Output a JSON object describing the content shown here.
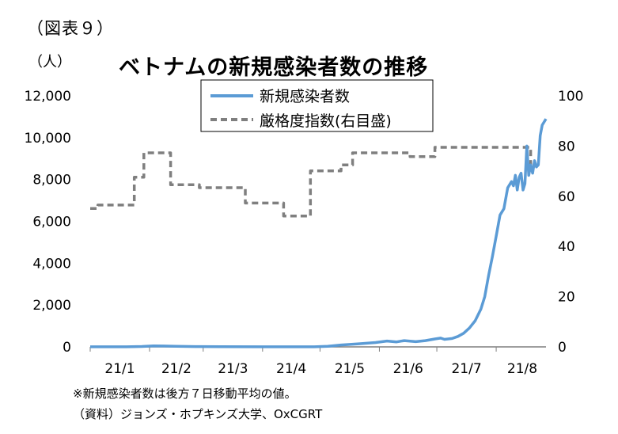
{
  "figure_label": "（図表９）",
  "unit_label": "（人）",
  "notes": {
    "note1": "※新規感染者数は後方７日移動平均の値。",
    "source": "（資料）ジョンズ・ホプキンズ大学、OxCGRT"
  },
  "colors": {
    "cases": "#5B9BD5",
    "stringency": "#7F7F7F",
    "axis": "#7F7F7F"
  },
  "chart_data": {
    "type": "line",
    "title": "ベトナムの新規感染者数の推移",
    "x_tick_labels": [
      "21/1",
      "21/2",
      "21/3",
      "21/4",
      "21/5",
      "21/6",
      "21/7",
      "21/8"
    ],
    "x_tick_dates": [
      "2021-01-01",
      "2021-02-01",
      "2021-03-01",
      "2021-04-01",
      "2021-05-01",
      "2021-06-01",
      "2021-07-01",
      "2021-08-01"
    ],
    "x_range": [
      "2021-01-01",
      "2021-08-27"
    ],
    "y_left": {
      "min": 0,
      "max": 12000,
      "ticks": [
        0,
        2000,
        4000,
        6000,
        8000,
        10000,
        12000
      ],
      "tick_labels": [
        "0",
        "2,000",
        "4,000",
        "6,000",
        "8,000",
        "10,000",
        "12,000"
      ]
    },
    "y_right": {
      "min": 0,
      "max": 100,
      "ticks": [
        0,
        20,
        40,
        60,
        80,
        100
      ],
      "tick_labels": [
        "0",
        "20",
        "40",
        "60",
        "80",
        "100"
      ]
    },
    "legend_position": "top-center, boxed",
    "series": [
      {
        "name": "新規感染者数",
        "axis": "left",
        "style": "solid",
        "points": [
          [
            "2021-01-01",
            2
          ],
          [
            "2021-01-20",
            5
          ],
          [
            "2021-01-28",
            20
          ],
          [
            "2021-02-03",
            50
          ],
          [
            "2021-02-08",
            40
          ],
          [
            "2021-02-15",
            25
          ],
          [
            "2021-02-25",
            15
          ],
          [
            "2021-03-10",
            8
          ],
          [
            "2021-04-01",
            5
          ],
          [
            "2021-04-28",
            5
          ],
          [
            "2021-05-05",
            30
          ],
          [
            "2021-05-12",
            90
          ],
          [
            "2021-05-22",
            150
          ],
          [
            "2021-05-30",
            210
          ],
          [
            "2021-06-05",
            280
          ],
          [
            "2021-06-10",
            240
          ],
          [
            "2021-06-14",
            300
          ],
          [
            "2021-06-20",
            250
          ],
          [
            "2021-06-25",
            300
          ],
          [
            "2021-06-30",
            380
          ],
          [
            "2021-07-03",
            420
          ],
          [
            "2021-07-05",
            360
          ],
          [
            "2021-07-09",
            400
          ],
          [
            "2021-07-12",
            500
          ],
          [
            "2021-07-15",
            650
          ],
          [
            "2021-07-18",
            900
          ],
          [
            "2021-07-21",
            1250
          ],
          [
            "2021-07-24",
            1800
          ],
          [
            "2021-07-26",
            2400
          ],
          [
            "2021-07-28",
            3400
          ],
          [
            "2021-07-30",
            4300
          ],
          [
            "2021-08-01",
            5300
          ],
          [
            "2021-08-03",
            6300
          ],
          [
            "2021-08-05",
            6600
          ],
          [
            "2021-08-07",
            7600
          ],
          [
            "2021-08-09",
            7900
          ],
          [
            "2021-08-10",
            7700
          ],
          [
            "2021-08-11",
            8200
          ],
          [
            "2021-08-12",
            7500
          ],
          [
            "2021-08-13",
            8100
          ],
          [
            "2021-08-14",
            8300
          ],
          [
            "2021-08-15",
            7500
          ],
          [
            "2021-08-16",
            7800
          ],
          [
            "2021-08-17",
            9600
          ],
          [
            "2021-08-18",
            8200
          ],
          [
            "2021-08-19",
            8700
          ],
          [
            "2021-08-20",
            8300
          ],
          [
            "2021-08-21",
            8900
          ],
          [
            "2021-08-22",
            8600
          ],
          [
            "2021-08-23",
            8700
          ],
          [
            "2021-08-24",
            10100
          ],
          [
            "2021-08-25",
            10600
          ],
          [
            "2021-08-27",
            10900
          ]
        ]
      },
      {
        "name": "厳格度指数(右目盛)",
        "axis": "right",
        "style": "dashed",
        "points": [
          [
            "2021-01-01",
            55.1
          ],
          [
            "2021-01-05",
            55.1
          ],
          [
            "2021-01-05",
            56.5
          ],
          [
            "2021-01-24",
            56.5
          ],
          [
            "2021-01-24",
            67.6
          ],
          [
            "2021-01-29",
            67.6
          ],
          [
            "2021-01-29",
            77.3
          ],
          [
            "2021-02-12",
            77.3
          ],
          [
            "2021-02-12",
            64.6
          ],
          [
            "2021-02-27",
            64.6
          ],
          [
            "2021-02-27",
            63.4
          ],
          [
            "2021-03-23",
            63.4
          ],
          [
            "2021-03-23",
            57.3
          ],
          [
            "2021-04-12",
            57.3
          ],
          [
            "2021-04-12",
            52.1
          ],
          [
            "2021-04-26",
            52.1
          ],
          [
            "2021-04-26",
            70.1
          ],
          [
            "2021-05-12",
            70.1
          ],
          [
            "2021-05-12",
            72.5
          ],
          [
            "2021-05-18",
            72.5
          ],
          [
            "2021-05-18",
            77.3
          ],
          [
            "2021-06-17",
            77.3
          ],
          [
            "2021-06-17",
            75.8
          ],
          [
            "2021-06-30",
            75.8
          ],
          [
            "2021-06-30",
            79.5
          ],
          [
            "2021-08-19",
            79.5
          ],
          [
            "2021-08-19",
            72.5
          ],
          [
            "2021-08-22",
            72.5
          ]
        ]
      }
    ]
  }
}
